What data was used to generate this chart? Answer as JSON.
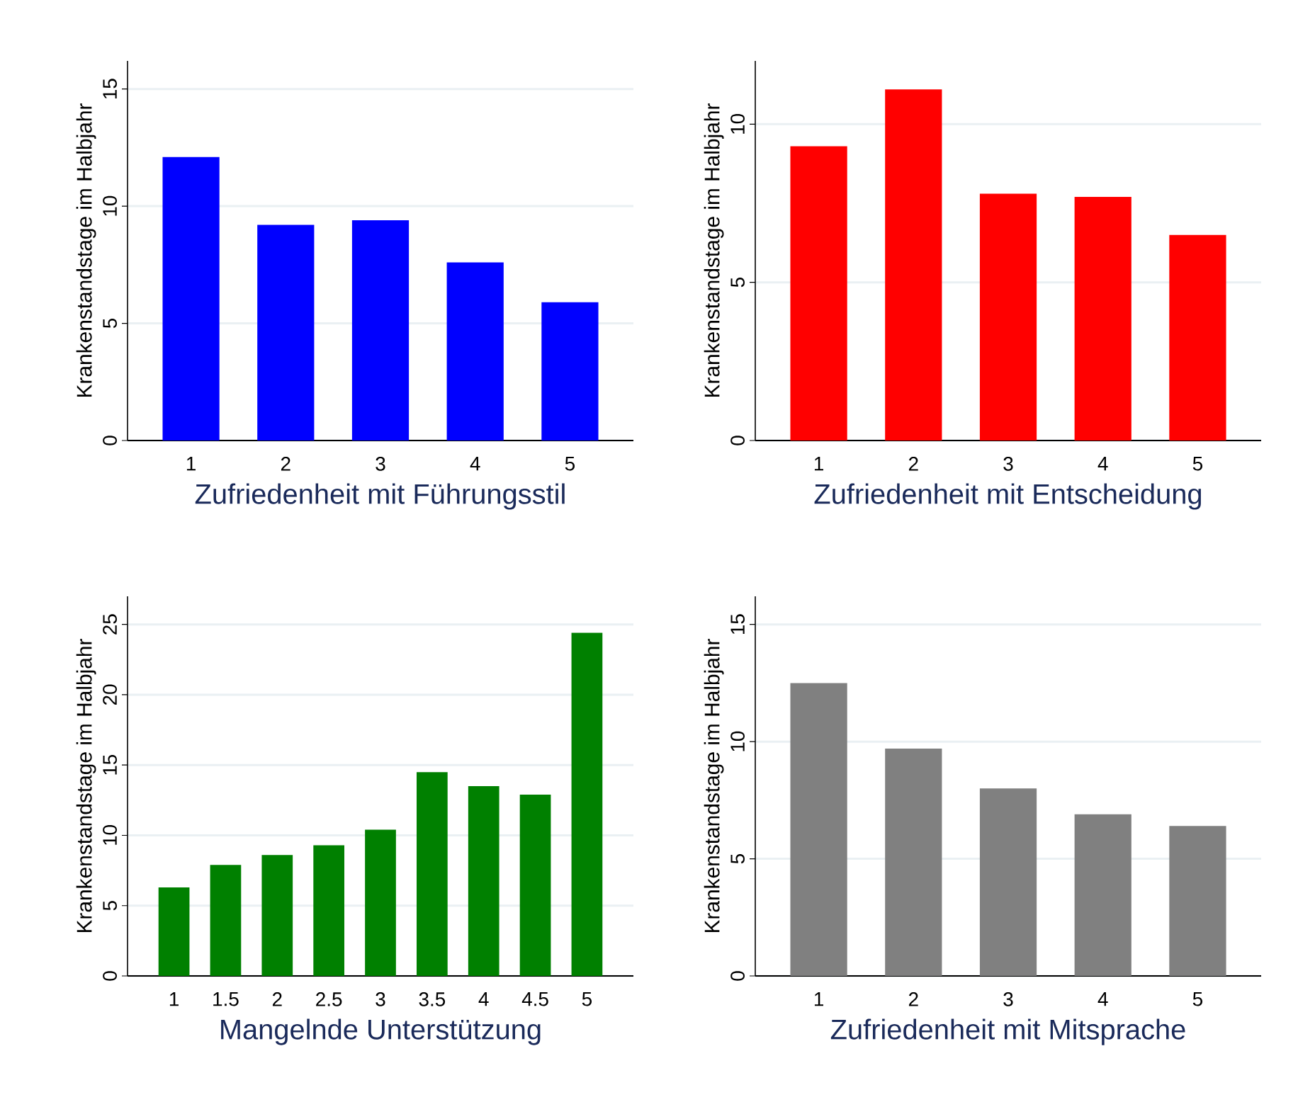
{
  "chart_data": [
    {
      "type": "bar",
      "xlabel": "Zufriedenheit mit Führungsstil",
      "ylabel": "Krankenstandstage im Halbjahr",
      "categories": [
        "1",
        "2",
        "3",
        "4",
        "5"
      ],
      "values": [
        12.1,
        9.2,
        9.4,
        7.6,
        5.9
      ],
      "color": "#0000ff",
      "ylim": [
        0,
        16.2
      ],
      "yticks": [
        0,
        5,
        10,
        15
      ],
      "grid": "y"
    },
    {
      "type": "bar",
      "xlabel": "Zufriedenheit mit Entscheidung",
      "ylabel": "Krankenstandstage im Halbjahr",
      "categories": [
        "1",
        "2",
        "3",
        "4",
        "5"
      ],
      "values": [
        9.3,
        11.1,
        7.8,
        7.7,
        6.5
      ],
      "color": "#ff0000",
      "ylim": [
        0,
        12
      ],
      "yticks": [
        0,
        5,
        10
      ],
      "grid": "y"
    },
    {
      "type": "bar",
      "xlabel": "Mangelnde Unterstützung",
      "ylabel": "Krankenstandstage im Halbjahr",
      "categories": [
        "1",
        "1.5",
        "2",
        "2.5",
        "3",
        "3.5",
        "4",
        "4.5",
        "5"
      ],
      "values": [
        6.3,
        7.9,
        8.6,
        9.3,
        10.4,
        14.5,
        13.5,
        12.9,
        24.4
      ],
      "color": "#008000",
      "ylim": [
        0,
        27
      ],
      "yticks": [
        0,
        5,
        10,
        15,
        20,
        25
      ],
      "grid": "y"
    },
    {
      "type": "bar",
      "xlabel": "Zufriedenheit mit Mitsprache",
      "ylabel": "Krankenstandstage im Halbjahr",
      "categories": [
        "1",
        "2",
        "3",
        "4",
        "5"
      ],
      "values": [
        12.5,
        9.7,
        8.0,
        6.9,
        6.4
      ],
      "color": "#808080",
      "ylim": [
        0,
        16.2
      ],
      "yticks": [
        0,
        5,
        10,
        15
      ],
      "grid": "y"
    }
  ]
}
